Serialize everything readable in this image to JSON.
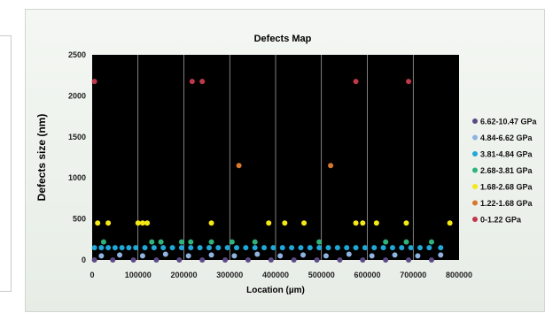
{
  "chart_data": {
    "type": "scatter",
    "title": "Defects Map",
    "xlabel": "Location (µm)",
    "ylabel": "Defects size (nm)",
    "xlim": [
      0,
      800000
    ],
    "ylim": [
      0,
      2500
    ],
    "x_ticks": [
      "0",
      "100000",
      "200000",
      "300000",
      "400000",
      "500000",
      "600000",
      "700000",
      "800000"
    ],
    "y_ticks": [
      "0",
      "500",
      "1000",
      "1500",
      "2000",
      "2500"
    ],
    "plot_background": "#000000",
    "grid": "vertical major gridlines",
    "legend_position": "right",
    "series": [
      {
        "name": "6.62-10.47 GPa",
        "color": "#5b4a86",
        "points": [
          [
            5000,
            0
          ],
          [
            45000,
            0
          ],
          [
            90000,
            0
          ],
          [
            140000,
            0
          ],
          [
            190000,
            0
          ],
          [
            240000,
            0
          ],
          [
            290000,
            0
          ],
          [
            340000,
            0
          ],
          [
            390000,
            0
          ],
          [
            440000,
            0
          ],
          [
            490000,
            0
          ],
          [
            540000,
            0
          ],
          [
            590000,
            0
          ],
          [
            640000,
            0
          ],
          [
            690000,
            0
          ],
          [
            740000,
            0
          ]
        ]
      },
      {
        "name": "4.84-6.62 GPa",
        "color": "#8fb4e3",
        "points": [
          [
            20000,
            50
          ],
          [
            60000,
            60
          ],
          [
            110000,
            50
          ],
          [
            160000,
            70
          ],
          [
            210000,
            50
          ],
          [
            260000,
            60
          ],
          [
            310000,
            50
          ],
          [
            360000,
            70
          ],
          [
            410000,
            50
          ],
          [
            460000,
            60
          ],
          [
            510000,
            50
          ],
          [
            560000,
            70
          ],
          [
            610000,
            50
          ],
          [
            660000,
            60
          ],
          [
            710000,
            50
          ],
          [
            760000,
            60
          ]
        ]
      },
      {
        "name": "3.81-4.84 GPa",
        "color": "#1fa8d8",
        "points": [
          [
            5000,
            150
          ],
          [
            20000,
            150
          ],
          [
            35000,
            150
          ],
          [
            50000,
            150
          ],
          [
            65000,
            150
          ],
          [
            80000,
            150
          ],
          [
            95000,
            150
          ],
          [
            115000,
            150
          ],
          [
            135000,
            150
          ],
          [
            155000,
            150
          ],
          [
            175000,
            150
          ],
          [
            195000,
            150
          ],
          [
            215000,
            150
          ],
          [
            235000,
            150
          ],
          [
            255000,
            150
          ],
          [
            275000,
            150
          ],
          [
            295000,
            150
          ],
          [
            315000,
            150
          ],
          [
            335000,
            150
          ],
          [
            355000,
            150
          ],
          [
            375000,
            150
          ],
          [
            395000,
            150
          ],
          [
            415000,
            150
          ],
          [
            435000,
            150
          ],
          [
            455000,
            150
          ],
          [
            475000,
            150
          ],
          [
            495000,
            150
          ],
          [
            515000,
            150
          ],
          [
            535000,
            150
          ],
          [
            555000,
            150
          ],
          [
            575000,
            150
          ],
          [
            595000,
            150
          ],
          [
            615000,
            150
          ],
          [
            635000,
            150
          ],
          [
            655000,
            150
          ],
          [
            675000,
            150
          ],
          [
            695000,
            150
          ],
          [
            715000,
            150
          ],
          [
            735000,
            150
          ],
          [
            760000,
            150
          ]
        ]
      },
      {
        "name": "2.68-3.81 GPa",
        "color": "#2fb37c",
        "points": [
          [
            25000,
            220
          ],
          [
            130000,
            220
          ],
          [
            150000,
            220
          ],
          [
            195000,
            220
          ],
          [
            215000,
            220
          ],
          [
            260000,
            220
          ],
          [
            305000,
            220
          ],
          [
            355000,
            220
          ],
          [
            495000,
            220
          ],
          [
            640000,
            220
          ],
          [
            685000,
            220
          ],
          [
            740000,
            220
          ]
        ]
      },
      {
        "name": "1.68-2.68 GPa",
        "color": "#f4e816",
        "points": [
          [
            12000,
            450
          ],
          [
            35000,
            450
          ],
          [
            100000,
            450
          ],
          [
            110000,
            450
          ],
          [
            120000,
            450
          ],
          [
            260000,
            450
          ],
          [
            385000,
            450
          ],
          [
            420000,
            450
          ],
          [
            462000,
            450
          ],
          [
            575000,
            450
          ],
          [
            590000,
            450
          ],
          [
            620000,
            450
          ],
          [
            685000,
            450
          ],
          [
            780000,
            450
          ]
        ]
      },
      {
        "name": "1.22-1.68 GPa",
        "color": "#d9772e",
        "points": [
          [
            320000,
            1150
          ],
          [
            520000,
            1150
          ]
        ]
      },
      {
        "name": "0-1.22 GPa",
        "color": "#c1384a",
        "points": [
          [
            5000,
            2175
          ],
          [
            218000,
            2175
          ],
          [
            240000,
            2175
          ],
          [
            575000,
            2175
          ],
          [
            690000,
            2175
          ]
        ]
      }
    ]
  }
}
